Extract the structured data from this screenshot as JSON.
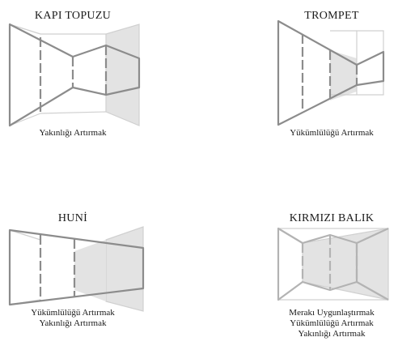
{
  "colors": {
    "stroke": "#8c8c8c",
    "stroke_light": "#b3b3b3",
    "frame": "#d0d0d0",
    "fill": "#e3e3e3",
    "text": "#1a1a1a"
  },
  "panels": [
    {
      "title": "KAPI TOPUZU",
      "captions": [
        "Yakınlığı Artırmak"
      ]
    },
    {
      "title": "TROMPET",
      "captions": [
        "Yükümlülüğü Artırmak"
      ]
    },
    {
      "title": "HUNİ",
      "captions": [
        "Yükümlülüğü Artırmak",
        "Yakınlığı Artırmak"
      ]
    },
    {
      "title": "KIRMIZI BALIK",
      "captions": [
        "Merakı Uygunlaştırmak",
        "Yükümlülüğü Artırmak",
        "Yakınlığı Artırmak"
      ]
    }
  ]
}
